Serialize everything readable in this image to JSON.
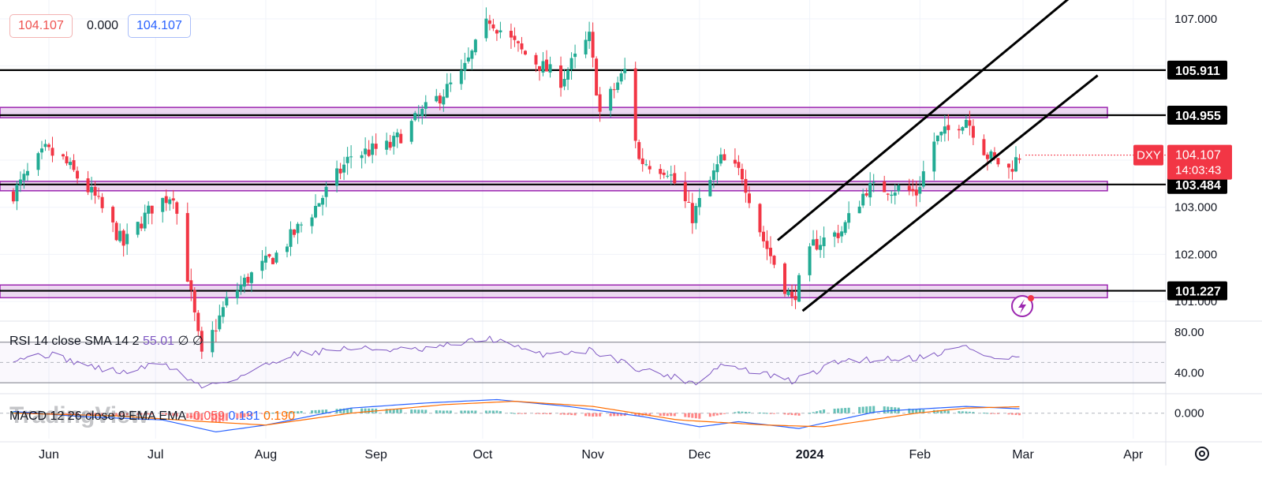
{
  "ohlc_header": {
    "open": "104.107",
    "change": "0.000",
    "close": "104.107"
  },
  "price_tag": {
    "symbol": "DXY",
    "price": "104.107",
    "countdown": "14:03:43"
  },
  "levels": [
    {
      "label": "105.911",
      "value": 105.911,
      "type": "line"
    },
    {
      "label": "104.955",
      "value": 104.955,
      "type": "zone",
      "zone": [
        104.9,
        105.12
      ]
    },
    {
      "label": "103.484",
      "value": 103.484,
      "type": "zone",
      "zone": [
        103.35,
        103.55
      ]
    },
    {
      "label": "101.227",
      "value": 101.227,
      "type": "zone",
      "zone": [
        101.08,
        101.35
      ]
    }
  ],
  "rsi_legend": {
    "name": "RSI",
    "params": "14 close SMA 14 2",
    "value": "55.01",
    "flags": "∅ ∅"
  },
  "macd_legend": {
    "name": "MACD",
    "params": "12 26 close 9 EMA EMA",
    "hist": "-0.059",
    "macd": "0.131",
    "signal": "0.190"
  },
  "watermark": "TradingView",
  "colors": {
    "up": "#22ab94",
    "down": "#f23645",
    "zone": "#9c27b0",
    "level": "#000000",
    "rsi": "#7e57c2",
    "macd": "#2962ff",
    "signal": "#ff6d00",
    "price_tag": "#f23645"
  },
  "chart_data": {
    "type": "candlestick",
    "symbol": "DXY",
    "ylim": [
      100.6,
      107.4
    ],
    "y_ticks": [
      "107.000",
      "103.000",
      "102.000",
      "101.000"
    ],
    "x_ticks": [
      "Jun",
      "Jul",
      "Aug",
      "Sep",
      "Oct",
      "Nov",
      "Dec",
      "2024",
      "Feb",
      "Mar",
      "Apr"
    ],
    "x_tick_dates": [
      "2023-06-01",
      "2023-07-01",
      "2023-08-01",
      "2023-09-01",
      "2023-10-01",
      "2023-11-01",
      "2023-12-01",
      "2024-01-01",
      "2024-02-01",
      "2024-03-01",
      "2024-04-01"
    ],
    "close_keypoints": [
      [
        "2023-05-22",
        103.3
      ],
      [
        "2023-05-31",
        104.2
      ],
      [
        "2023-06-05",
        104.0
      ],
      [
        "2023-06-14",
        103.2
      ],
      [
        "2023-06-22",
        102.2
      ],
      [
        "2023-06-30",
        103.0
      ],
      [
        "2023-07-06",
        103.3
      ],
      [
        "2023-07-14",
        99.8
      ],
      [
        "2023-07-21",
        101.0
      ],
      [
        "2023-07-27",
        101.5
      ],
      [
        "2023-08-04",
        102.0
      ],
      [
        "2023-08-14",
        102.9
      ],
      [
        "2023-08-25",
        104.1
      ],
      [
        "2023-09-05",
        104.3
      ],
      [
        "2023-09-14",
        105.0
      ],
      [
        "2023-09-25",
        105.8
      ],
      [
        "2023-10-03",
        107.0
      ],
      [
        "2023-10-12",
        106.3
      ],
      [
        "2023-10-23",
        105.7
      ],
      [
        "2023-10-31",
        106.6
      ],
      [
        "2023-11-03",
        105.0
      ],
      [
        "2023-11-10",
        105.9
      ],
      [
        "2023-11-14",
        104.0
      ],
      [
        "2023-11-22",
        103.8
      ],
      [
        "2023-11-29",
        102.8
      ],
      [
        "2023-12-07",
        104.0
      ],
      [
        "2023-12-13",
        103.7
      ],
      [
        "2023-12-19",
        102.3
      ],
      [
        "2023-12-27",
        101.0
      ],
      [
        "2024-01-02",
        102.2
      ],
      [
        "2024-01-10",
        102.5
      ],
      [
        "2024-01-17",
        103.4
      ],
      [
        "2024-01-26",
        103.4
      ],
      [
        "2024-01-31",
        103.3
      ],
      [
        "2024-02-05",
        104.4
      ],
      [
        "2024-02-14",
        104.9
      ],
      [
        "2024-02-20",
        104.1
      ],
      [
        "2024-02-26",
        103.8
      ],
      [
        "2024-02-29",
        104.1
      ]
    ],
    "channel": {
      "upper": [
        [
          "2023-12-23",
          102.3
        ],
        [
          "2024-03-15",
          107.5
        ]
      ],
      "lower": [
        [
          "2023-12-30",
          100.8
        ],
        [
          "2024-03-22",
          105.8
        ]
      ]
    },
    "rsi": {
      "ylim": [
        20,
        90
      ],
      "y_ticks": [
        "80.00",
        "40.00"
      ],
      "bands": [
        70,
        30
      ],
      "mid": 50,
      "keypoints": [
        [
          "2023-05-22",
          54
        ],
        [
          "2023-06-01",
          58
        ],
        [
          "2023-06-14",
          45
        ],
        [
          "2023-06-22",
          40
        ],
        [
          "2023-07-03",
          50
        ],
        [
          "2023-07-14",
          26
        ],
        [
          "2023-07-24",
          35
        ],
        [
          "2023-08-08",
          58
        ],
        [
          "2023-08-24",
          64
        ],
        [
          "2023-09-14",
          62
        ],
        [
          "2023-10-03",
          74
        ],
        [
          "2023-10-16",
          58
        ],
        [
          "2023-11-01",
          62
        ],
        [
          "2023-11-14",
          44
        ],
        [
          "2023-11-30",
          30
        ],
        [
          "2023-12-07",
          48
        ],
        [
          "2023-12-20",
          38
        ],
        [
          "2023-12-27",
          31
        ],
        [
          "2024-01-10",
          52
        ],
        [
          "2024-02-01",
          55
        ],
        [
          "2024-02-14",
          66
        ],
        [
          "2024-02-22",
          53
        ],
        [
          "2024-02-29",
          55
        ]
      ]
    },
    "macd": {
      "ylim": [
        -0.75,
        0.55
      ],
      "y_ticks": [
        "0.000"
      ],
      "macd_keypoints": [
        [
          "2023-05-22",
          0.05
        ],
        [
          "2023-06-10",
          -0.1
        ],
        [
          "2023-07-03",
          -0.2
        ],
        [
          "2023-07-18",
          -0.55
        ],
        [
          "2023-08-01",
          -0.35
        ],
        [
          "2023-08-25",
          0.15
        ],
        [
          "2023-09-15",
          0.3
        ],
        [
          "2023-10-05",
          0.4
        ],
        [
          "2023-10-25",
          0.2
        ],
        [
          "2023-11-15",
          -0.1
        ],
        [
          "2023-12-01",
          -0.4
        ],
        [
          "2023-12-12",
          -0.25
        ],
        [
          "2023-12-29",
          -0.45
        ],
        [
          "2024-01-20",
          0.05
        ],
        [
          "2024-02-14",
          0.2
        ],
        [
          "2024-02-29",
          0.131
        ]
      ],
      "signal_keypoints": [
        [
          "2023-05-22",
          0.0
        ],
        [
          "2023-06-20",
          -0.08
        ],
        [
          "2023-07-15",
          -0.25
        ],
        [
          "2023-08-01",
          -0.35
        ],
        [
          "2023-08-25",
          0.0
        ],
        [
          "2023-09-20",
          0.25
        ],
        [
          "2023-10-10",
          0.35
        ],
        [
          "2023-11-01",
          0.2
        ],
        [
          "2023-11-25",
          -0.2
        ],
        [
          "2023-12-20",
          -0.35
        ],
        [
          "2024-01-05",
          -0.4
        ],
        [
          "2024-01-31",
          0.0
        ],
        [
          "2024-02-14",
          0.15
        ],
        [
          "2024-02-29",
          0.19
        ]
      ]
    }
  }
}
